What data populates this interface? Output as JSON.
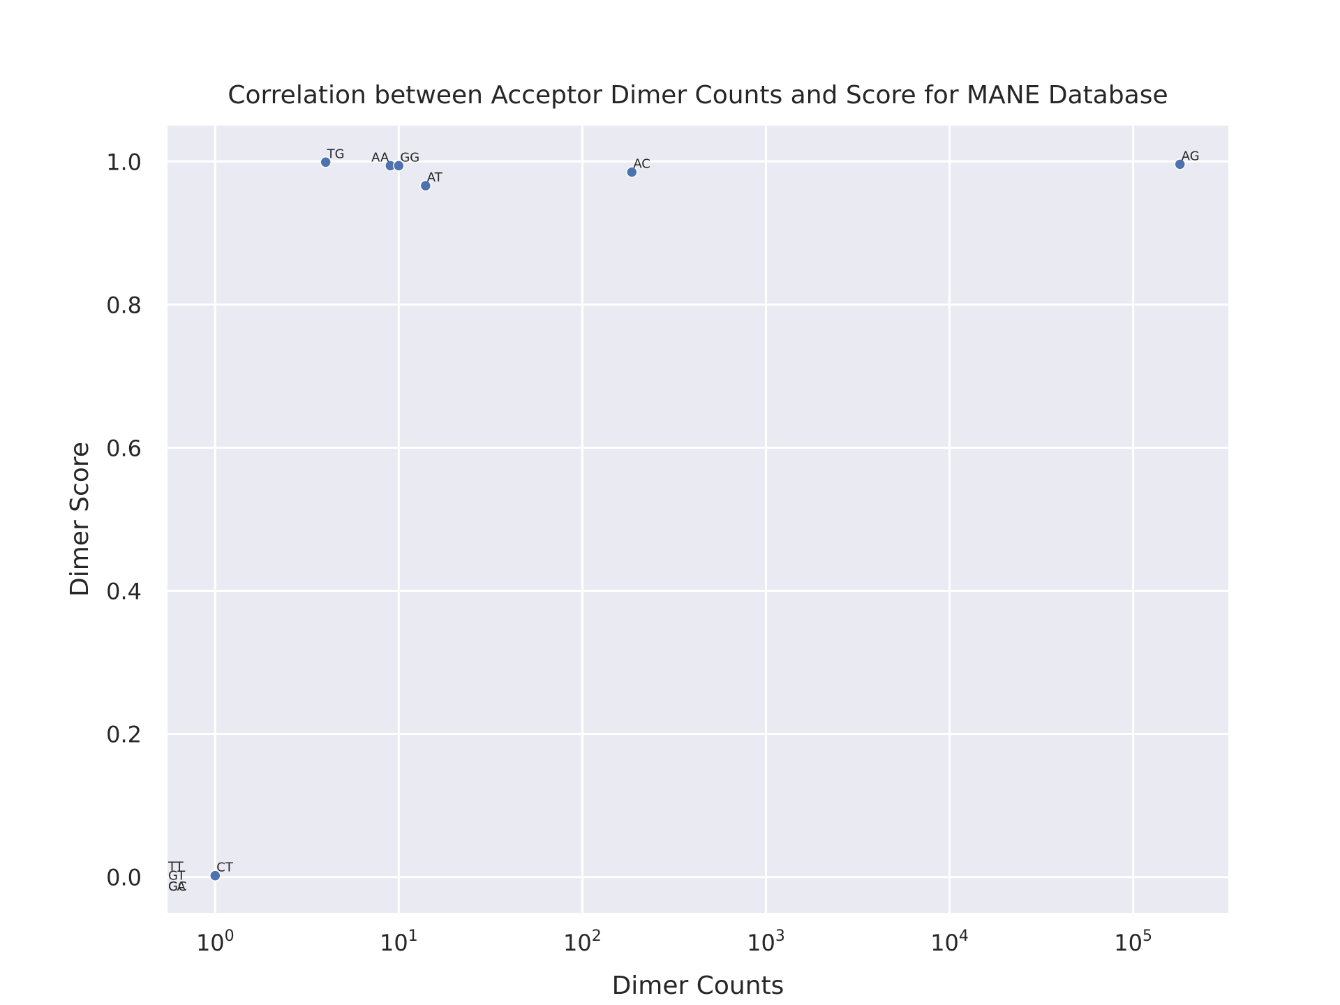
{
  "chart_data": {
    "type": "scatter",
    "title": "Correlation between Acceptor Dimer Counts and Score for MANE Database",
    "xlabel": "Dimer Counts",
    "ylabel": "Dimer Score",
    "xscale": "log",
    "xlim": [
      0.55,
      330000
    ],
    "ylim": [
      -0.05,
      1.05
    ],
    "grid": true,
    "x_ticks": [
      {
        "base": "10",
        "exp": "0",
        "value": 1
      },
      {
        "base": "10",
        "exp": "1",
        "value": 10
      },
      {
        "base": "10",
        "exp": "2",
        "value": 100
      },
      {
        "base": "10",
        "exp": "3",
        "value": 1000
      },
      {
        "base": "10",
        "exp": "4",
        "value": 10000
      },
      {
        "base": "10",
        "exp": "5",
        "value": 100000
      }
    ],
    "y_ticks": [
      {
        "label": "0.0",
        "value": 0.0
      },
      {
        "label": "0.2",
        "value": 0.2
      },
      {
        "label": "0.4",
        "value": 0.4
      },
      {
        "label": "0.6",
        "value": 0.6
      },
      {
        "label": "0.8",
        "value": 0.8
      },
      {
        "label": "1.0",
        "value": 1.0
      }
    ],
    "points": [
      {
        "label": "TG",
        "x": 4,
        "y": 0.999
      },
      {
        "label": "AA",
        "x": 9,
        "y": 0.994
      },
      {
        "label": "GG",
        "x": 10,
        "y": 0.994
      },
      {
        "label": "AT",
        "x": 14,
        "y": 0.966
      },
      {
        "label": "AC",
        "x": 186,
        "y": 0.985
      },
      {
        "label": "AG",
        "x": 180000,
        "y": 0.996
      },
      {
        "label": "CT",
        "x": 1,
        "y": 0.002
      },
      {
        "label": "TT",
        "x": 0,
        "y": 0.013
      },
      {
        "label": "GT",
        "x": 0,
        "y": 0.0
      },
      {
        "label": "GC",
        "x": 0,
        "y": -0.015
      },
      {
        "label": "CA",
        "x": 0,
        "y": -0.015
      }
    ],
    "marker_color": "#4c72b0",
    "background_color": "#eaeaf2",
    "grid_color": "#ffffff"
  }
}
